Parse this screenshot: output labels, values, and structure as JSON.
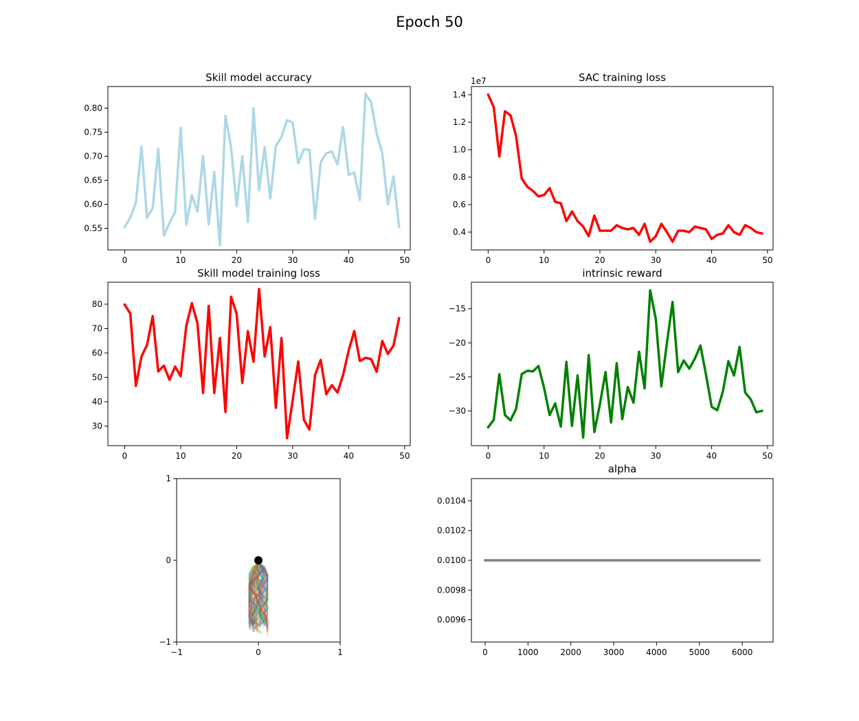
{
  "figure": {
    "title": "Epoch 50"
  },
  "chart_data": [
    {
      "id": "acc",
      "type": "line",
      "title": "Skill model accuracy",
      "color": "#add8e6",
      "x": [
        0,
        1,
        2,
        3,
        4,
        5,
        6,
        7,
        8,
        9,
        10,
        11,
        12,
        13,
        14,
        15,
        16,
        17,
        18,
        19,
        20,
        21,
        22,
        23,
        24,
        25,
        26,
        27,
        28,
        29,
        30,
        31,
        32,
        33,
        34,
        35,
        36,
        37,
        38,
        39,
        40,
        41,
        42,
        43,
        44,
        45,
        46,
        47,
        48,
        49
      ],
      "y": [
        0.553,
        0.572,
        0.603,
        0.72,
        0.572,
        0.592,
        0.715,
        0.535,
        0.561,
        0.584,
        0.759,
        0.558,
        0.619,
        0.585,
        0.7,
        0.558,
        0.667,
        0.515,
        0.784,
        0.718,
        0.596,
        0.7,
        0.563,
        0.8,
        0.629,
        0.719,
        0.612,
        0.721,
        0.74,
        0.775,
        0.77,
        0.685,
        0.715,
        0.713,
        0.57,
        0.687,
        0.706,
        0.71,
        0.683,
        0.761,
        0.661,
        0.666,
        0.609,
        0.83,
        0.812,
        0.747,
        0.706,
        0.6,
        0.658,
        0.553
      ],
      "xlim": [
        -3,
        51
      ],
      "ylim": [
        0.505,
        0.845
      ],
      "xticks": [
        0,
        10,
        20,
        30,
        40,
        50
      ],
      "xtick_labels": [
        "0",
        "10",
        "20",
        "30",
        "40",
        "50"
      ],
      "yticks": [
        0.55,
        0.6,
        0.65,
        0.7,
        0.75,
        0.8
      ],
      "ytick_labels": [
        "0.55",
        "0.60",
        "0.65",
        "0.70",
        "0.75",
        "0.80"
      ]
    },
    {
      "id": "sac",
      "type": "line",
      "title": "SAC training loss",
      "color": "#ff0000",
      "offset_text": "1e7",
      "x": [
        0,
        1,
        2,
        3,
        4,
        5,
        6,
        7,
        8,
        9,
        10,
        11,
        12,
        13,
        14,
        15,
        16,
        17,
        18,
        19,
        20,
        21,
        22,
        23,
        24,
        25,
        26,
        27,
        28,
        29,
        30,
        31,
        32,
        33,
        34,
        35,
        36,
        37,
        38,
        39,
        40,
        41,
        42,
        43,
        44,
        45,
        46,
        47,
        48,
        49
      ],
      "y": [
        1.4,
        1.31,
        0.95,
        1.28,
        1.25,
        1.1,
        0.79,
        0.73,
        0.7,
        0.66,
        0.67,
        0.72,
        0.62,
        0.61,
        0.48,
        0.55,
        0.48,
        0.44,
        0.37,
        0.52,
        0.41,
        0.41,
        0.41,
        0.45,
        0.43,
        0.42,
        0.43,
        0.38,
        0.46,
        0.33,
        0.37,
        0.46,
        0.4,
        0.33,
        0.41,
        0.41,
        0.4,
        0.44,
        0.43,
        0.42,
        0.35,
        0.38,
        0.39,
        0.45,
        0.4,
        0.38,
        0.45,
        0.43,
        0.4,
        0.39
      ],
      "xlim": [
        -3,
        51
      ],
      "ylim": [
        0.27,
        1.46
      ],
      "xticks": [
        0,
        10,
        20,
        30,
        40,
        50
      ],
      "xtick_labels": [
        "0",
        "10",
        "20",
        "30",
        "40",
        "50"
      ],
      "yticks": [
        0.4,
        0.6,
        0.8,
        1.0,
        1.2,
        1.4
      ],
      "ytick_labels": [
        "0.4",
        "0.6",
        "0.8",
        "1.0",
        "1.2",
        "1.4"
      ]
    },
    {
      "id": "skloss",
      "type": "line",
      "title": "Skill model training loss",
      "color": "#ff0000",
      "x": [
        0,
        1,
        2,
        3,
        4,
        5,
        6,
        7,
        8,
        9,
        10,
        11,
        12,
        13,
        14,
        15,
        16,
        17,
        18,
        19,
        20,
        21,
        22,
        23,
        24,
        25,
        26,
        27,
        28,
        29,
        30,
        31,
        32,
        33,
        34,
        35,
        36,
        37,
        38,
        39,
        40,
        41,
        42,
        43,
        44,
        45,
        46,
        47,
        48,
        49
      ],
      "y": [
        79.8,
        76.2,
        46.5,
        58.5,
        63.3,
        75.1,
        52.4,
        54.8,
        49.0,
        54.4,
        50.5,
        71.1,
        80.4,
        72.1,
        43.6,
        79.3,
        43.6,
        66.1,
        35.8,
        83.0,
        76.0,
        47.7,
        68.9,
        56.4,
        86.2,
        58.6,
        70.6,
        37.5,
        66.1,
        25.1,
        40.6,
        56.5,
        32.6,
        28.6,
        51.0,
        57.1,
        43.1,
        46.8,
        43.8,
        50.9,
        61.0,
        69.0,
        56.7,
        58.0,
        57.5,
        52.3,
        64.9,
        59.6,
        63.0,
        74.2
      ],
      "xlim": [
        -3,
        51
      ],
      "ylim": [
        22,
        89
      ],
      "xticks": [
        0,
        10,
        20,
        30,
        40,
        50
      ],
      "xtick_labels": [
        "0",
        "10",
        "20",
        "30",
        "40",
        "50"
      ],
      "yticks": [
        30,
        40,
        50,
        60,
        70,
        80
      ],
      "ytick_labels": [
        "30",
        "40",
        "50",
        "60",
        "70",
        "80"
      ]
    },
    {
      "id": "reward",
      "type": "line",
      "title": "intrinsic reward",
      "color": "#008000",
      "x": [
        0,
        1,
        2,
        3,
        4,
        5,
        6,
        7,
        8,
        9,
        10,
        11,
        12,
        13,
        14,
        15,
        16,
        17,
        18,
        19,
        20,
        21,
        22,
        23,
        24,
        25,
        26,
        27,
        28,
        29,
        30,
        31,
        32,
        33,
        34,
        35,
        36,
        37,
        38,
        39,
        40,
        41,
        42,
        43,
        44,
        45,
        46,
        47,
        48,
        49
      ],
      "y": [
        -32.4,
        -31.3,
        -24.6,
        -30.6,
        -31.4,
        -29.7,
        -24.6,
        -24.1,
        -24.2,
        -23.4,
        -26.6,
        -30.6,
        -28.9,
        -32.3,
        -22.8,
        -32.2,
        -24.8,
        -33.9,
        -21.8,
        -33.1,
        -29.0,
        -24.3,
        -31.7,
        -23.0,
        -31.2,
        -26.5,
        -28.8,
        -21.3,
        -26.7,
        -12.3,
        -16.5,
        -26.4,
        -20.0,
        -14.0,
        -24.3,
        -22.6,
        -23.8,
        -22.3,
        -20.4,
        -24.7,
        -29.4,
        -29.9,
        -27.2,
        -22.7,
        -24.8,
        -20.6,
        -27.3,
        -28.3,
        -30.2,
        -30.0
      ],
      "xlim": [
        -3,
        51
      ],
      "ylim": [
        -35.1,
        -11.1
      ],
      "xticks": [
        0,
        10,
        20,
        30,
        40,
        50
      ],
      "xtick_labels": [
        "0",
        "10",
        "20",
        "30",
        "40",
        "50"
      ],
      "yticks": [
        -30,
        -25,
        -20,
        -15
      ],
      "ytick_labels": [
        "−30",
        "−25",
        "−20",
        "−15"
      ]
    },
    {
      "id": "traj",
      "type": "line",
      "title": "",
      "point": {
        "x": 0,
        "y": 0,
        "color": "#000000"
      },
      "traj_colors": [
        "#1f77b4",
        "#ff7f0e",
        "#2ca02c",
        "#d62728",
        "#9467bd",
        "#8c564b",
        "#e377c2",
        "#7f7f7f",
        "#bcbd22",
        "#17becf"
      ],
      "xlim": [
        -1,
        1
      ],
      "ylim": [
        -1,
        1
      ],
      "xticks": [
        -1,
        0,
        1
      ],
      "xtick_labels": [
        "−1",
        "0",
        "1"
      ],
      "yticks": [
        -1,
        0,
        1
      ],
      "ytick_labels": [
        "−1",
        "0",
        "1"
      ]
    },
    {
      "id": "alpha",
      "type": "line",
      "title": "alpha",
      "color": "#808080",
      "x": [
        0,
        6400
      ],
      "y": [
        0.01,
        0.01
      ],
      "xlim": [
        -320,
        6720
      ],
      "ylim": [
        0.00945,
        0.01055
      ],
      "xticks": [
        0,
        1000,
        2000,
        3000,
        4000,
        5000,
        6000
      ],
      "xtick_labels": [
        "0",
        "1000",
        "2000",
        "3000",
        "4000",
        "5000",
        "6000"
      ],
      "yticks": [
        0.0096,
        0.0098,
        0.01,
        0.0102,
        0.0104
      ],
      "ytick_labels": [
        "0.0096",
        "0.0098",
        "0.0100",
        "0.0102",
        "0.0104"
      ]
    }
  ]
}
